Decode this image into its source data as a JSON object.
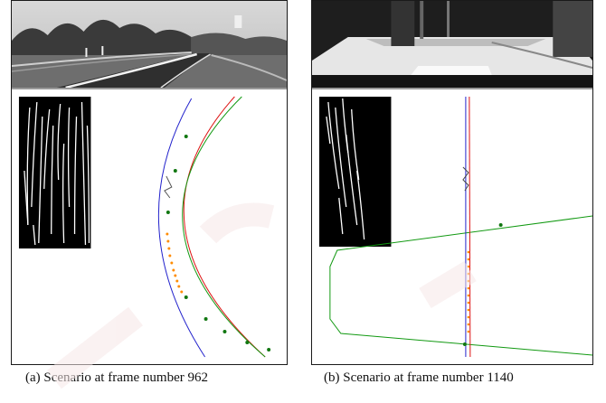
{
  "figure": {
    "panels": [
      {
        "id": "a",
        "caption": "(a) Scenario at frame number 962"
      },
      {
        "id": "b",
        "caption": "(b) Scenario at frame number 1140"
      }
    ],
    "colors": {
      "blue_curve": "#2222cc",
      "red_curve": "#dd1111",
      "green_curve": "#119911",
      "green_points": "#117711",
      "orange_points": "#ff8c00",
      "frame": "#1a1a1a"
    }
  }
}
